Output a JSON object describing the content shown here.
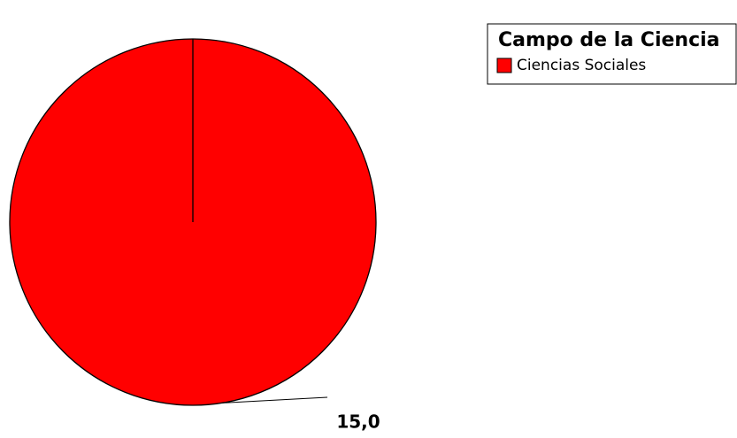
{
  "chart_data": {
    "type": "pie",
    "legend_title": "Campo de la Ciencia",
    "categories": [
      "Ciencias Sociales"
    ],
    "values": [
      15
    ],
    "value_labels": [
      "15,0"
    ],
    "colors": [
      "#ff0000"
    ],
    "legend": "top-right"
  }
}
